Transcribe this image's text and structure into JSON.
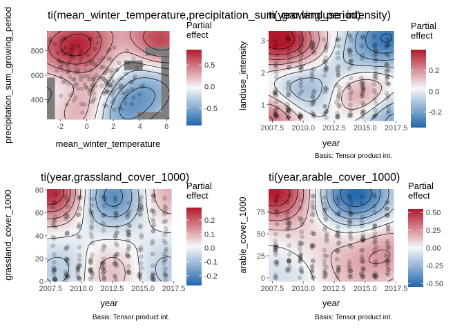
{
  "figure": {
    "colors": {
      "panel_bg": "#ebebeb",
      "missing": "#7f7f7f",
      "neg": "#2166ac",
      "pos": "#b2182b",
      "mid": "#f7f7f7",
      "points": "#000000"
    }
  },
  "chart_data": [
    {
      "type": "heatmap",
      "title": "ti(mean_winter_temperature,precipitation_sum_growing_period)",
      "xlabel": "mean_winter_temperature",
      "ylabel": "precipitation_sum_growing_period",
      "caption": "",
      "xlim": [
        -3,
        6.2
      ],
      "ylim": [
        240,
        960
      ],
      "xticks": [
        -2,
        0,
        2,
        4,
        6
      ],
      "xtick_labels": [
        "-2",
        "0",
        "2",
        "4",
        "6"
      ],
      "yticks": [
        400,
        600,
        800
      ],
      "ytick_labels": [
        "400",
        "600",
        "800"
      ],
      "legend": {
        "title": "Partial effect",
        "min": -0.9,
        "max": 0.85,
        "ticks": [
          -0.5,
          0.0,
          0.5
        ],
        "tick_labels": [
          "-0.5",
          "0.0",
          "0.5"
        ]
      },
      "grid": true,
      "legend_position": "right",
      "effect_bumps": [
        {
          "x": 0.0,
          "y": 880,
          "v": 0.6
        },
        {
          "x": -2.2,
          "y": 790,
          "v": 0.4
        },
        {
          "x": 5.2,
          "y": 880,
          "v": 0.8
        },
        {
          "x": 0.3,
          "y": 330,
          "v": 0.7
        },
        {
          "x": 2.0,
          "y": 300,
          "v": -0.8
        },
        {
          "x": 4.8,
          "y": 480,
          "v": -0.45
        },
        {
          "x": 3.2,
          "y": 800,
          "v": -0.3
        },
        {
          "x": -1.8,
          "y": 470,
          "v": -0.2
        },
        {
          "x": 1.2,
          "y": 600,
          "v": 0.15
        }
      ],
      "missing_regions": [
        {
          "x0": -3,
          "x1": -2.4,
          "y0": 240,
          "y1": 580
        },
        {
          "x0": 5.6,
          "x1": 6.2,
          "y0": 240,
          "y1": 800
        },
        {
          "x0": 3.8,
          "x1": 6.2,
          "y0": 240,
          "y1": 300
        },
        {
          "x0": 4.4,
          "x1": 6.2,
          "y0": 760,
          "y1": 830
        },
        {
          "x0": 2.8,
          "x1": 4.2,
          "y0": 640,
          "y1": 720
        }
      ],
      "point_clusters": [
        {
          "x": -0.5,
          "y": 620,
          "sx": 1.2,
          "sy": 160,
          "n": 70
        },
        {
          "x": 1.3,
          "y": 560,
          "sx": 0.9,
          "sy": 130,
          "n": 60
        },
        {
          "x": 2.8,
          "y": 500,
          "sx": 1.0,
          "sy": 110,
          "n": 35
        },
        {
          "x": -1.5,
          "y": 780,
          "sx": 0.6,
          "sy": 80,
          "n": 25
        }
      ]
    },
    {
      "type": "heatmap",
      "title": "ti(year,landuse_intensity)",
      "xlabel": "year",
      "ylabel": "landuse_intensity",
      "caption": "Basis: Tensor product int.",
      "xlim": [
        2007.2,
        2017.3
      ],
      "ylim": [
        0.5,
        3.3
      ],
      "xticks": [
        2007.5,
        2010.0,
        2012.5,
        2015.0,
        2017.5
      ],
      "xtick_labels": [
        "2007.5",
        "2010.0",
        "2012.5",
        "2015.0",
        "2017.5"
      ],
      "yticks": [
        1,
        2,
        3
      ],
      "ytick_labels": [
        "1",
        "2",
        "3"
      ],
      "legend": {
        "title": "Partial effect",
        "min": -0.35,
        "max": 0.4,
        "ticks": [
          -0.2,
          0.0,
          0.2
        ],
        "tick_labels": [
          "-0.2",
          "0.0",
          "0.2"
        ]
      },
      "grid": true,
      "legend_position": "right",
      "effect_bumps": [
        {
          "x": 2007.7,
          "y": 3.1,
          "v": 0.4
        },
        {
          "x": 2016.8,
          "y": 3.1,
          "v": -0.3
        },
        {
          "x": 2007.7,
          "y": 0.7,
          "v": 0.3
        },
        {
          "x": 2016.8,
          "y": 0.7,
          "v": -0.25
        },
        {
          "x": 2015.0,
          "y": 1.3,
          "v": 0.28
        },
        {
          "x": 2009.5,
          "y": 1.3,
          "v": -0.22
        },
        {
          "x": 2013.5,
          "y": 2.2,
          "v": -0.12
        },
        {
          "x": 2010.5,
          "y": 2.8,
          "v": 0.12
        }
      ],
      "point_columns": {
        "x": [
          2007.8,
          2008.8,
          2009.8,
          2010.8,
          2011.8,
          2012.8,
          2013.8,
          2014.8,
          2015.8,
          2016.8
        ],
        "y_range": [
          0.6,
          3.2
        ],
        "n": 26
      }
    },
    {
      "type": "heatmap",
      "title": "ti(year,grassland_cover_1000)",
      "xlabel": "year",
      "ylabel": "grassland_cover_1000",
      "caption": "Basis: Tensor product int.",
      "xlim": [
        2007.2,
        2017.3
      ],
      "ylim": [
        0,
        81
      ],
      "xticks": [
        2007.5,
        2010.0,
        2012.5,
        2015.0,
        2017.5
      ],
      "xtick_labels": [
        "2007.5",
        "2010.0",
        "2012.5",
        "2015.0",
        "2017.5"
      ],
      "yticks": [
        0,
        20,
        40,
        60,
        80
      ],
      "ytick_labels": [
        "0",
        "20",
        "40",
        "60",
        "80"
      ],
      "legend": {
        "title": "Partial effect",
        "min": -0.27,
        "max": 0.29,
        "ticks": [
          -0.2,
          -0.1,
          0.0,
          0.1,
          0.2
        ],
        "tick_labels": [
          "-0.2",
          "-0.1",
          "0.0",
          "0.1",
          "0.2"
        ]
      },
      "grid": true,
      "legend_position": "right",
      "effect_bumps": [
        {
          "x": 2007.7,
          "y": 78,
          "v": 0.28
        },
        {
          "x": 2016.8,
          "y": 78,
          "v": 0.12
        },
        {
          "x": 2012.5,
          "y": 75,
          "v": -0.22
        },
        {
          "x": 2012.5,
          "y": 8,
          "v": 0.1
        },
        {
          "x": 2008.5,
          "y": 10,
          "v": -0.08
        },
        {
          "x": 2016.5,
          "y": 10,
          "v": -0.08
        }
      ],
      "point_columns": {
        "x": [
          2007.8,
          2008.8,
          2009.8,
          2010.8,
          2011.8,
          2012.8,
          2013.8,
          2014.8,
          2015.8,
          2016.8
        ],
        "y_range": [
          1,
          76
        ],
        "n": 26
      }
    },
    {
      "type": "heatmap",
      "title": "ti(year,arable_cover_1000)",
      "xlabel": "year",
      "ylabel": "arable_cover_1000",
      "caption": "Basis: Tensor product int.",
      "xlim": [
        2007.2,
        2017.3
      ],
      "ylim": [
        -4,
        101
      ],
      "xticks": [
        2007.5,
        2010.0,
        2012.5,
        2015.0,
        2017.5
      ],
      "xtick_labels": [
        "2007.5",
        "2010.0",
        "2012.5",
        "2015.0",
        "2017.5"
      ],
      "yticks": [
        0,
        25,
        50,
        75
      ],
      "ytick_labels": [
        "0",
        "25",
        "50",
        "75"
      ],
      "legend": {
        "title": "Partial effect",
        "min": -0.55,
        "max": 0.55,
        "ticks": [
          -0.5,
          -0.25,
          0.0,
          0.25,
          0.5
        ],
        "tick_labels": [
          "-0.50",
          "-0.25",
          "0.00",
          "0.25",
          "0.50"
        ]
      },
      "grid": true,
      "legend_position": "right",
      "effect_bumps": [
        {
          "x": 2007.7,
          "y": 97,
          "v": 0.55
        },
        {
          "x": 2014.2,
          "y": 95,
          "v": -0.55
        },
        {
          "x": 2016.8,
          "y": 30,
          "v": 0.2
        },
        {
          "x": 2011.0,
          "y": 40,
          "v": 0.08
        },
        {
          "x": 2008.5,
          "y": 5,
          "v": -0.1
        },
        {
          "x": 2014.0,
          "y": 5,
          "v": 0.12
        }
      ],
      "point_columns": {
        "x": [
          2007.8,
          2008.8,
          2009.8,
          2010.8,
          2011.8,
          2012.8,
          2013.8,
          2014.8,
          2015.8,
          2016.8
        ],
        "y_range": [
          0,
          95
        ],
        "n": 26
      }
    }
  ]
}
